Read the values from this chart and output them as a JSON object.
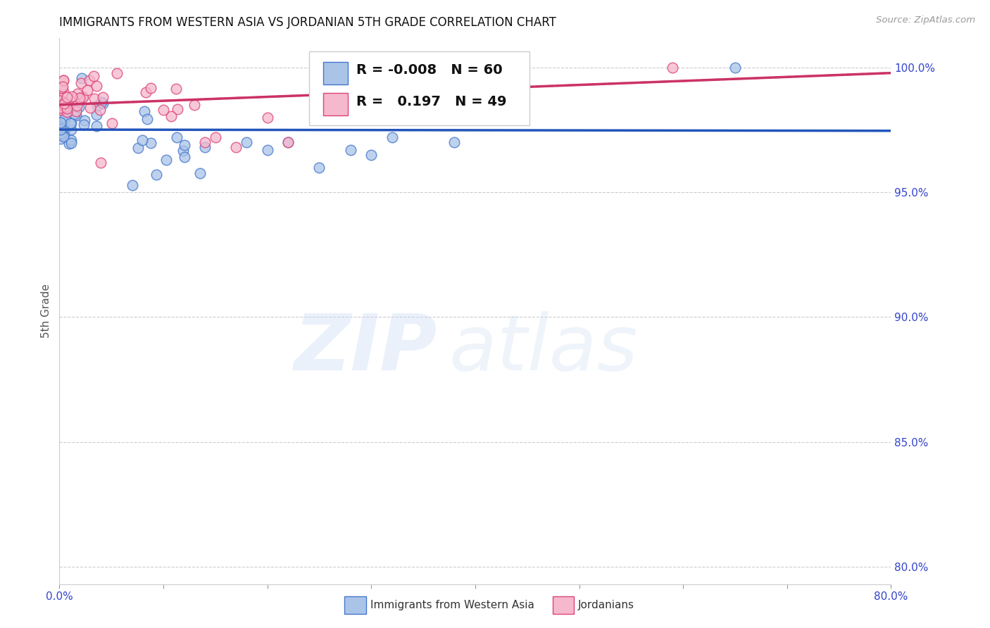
{
  "title": "IMMIGRANTS FROM WESTERN ASIA VS JORDANIAN 5TH GRADE CORRELATION CHART",
  "source": "Source: ZipAtlas.com",
  "ylabel": "5th Grade",
  "legend_blue_R": "-0.008",
  "legend_blue_N": "60",
  "legend_pink_R": "0.197",
  "legend_pink_N": "49",
  "legend_blue_label": "Immigrants from Western Asia",
  "legend_pink_label": "Jordanians",
  "xlim": [
    0.0,
    0.8
  ],
  "ylim": [
    0.793,
    1.012
  ],
  "yticks": [
    0.8,
    0.85,
    0.9,
    0.95,
    1.0
  ],
  "ytick_labels": [
    "80.0%",
    "85.0%",
    "90.0%",
    "95.0%",
    "100.0%"
  ],
  "xtick_positions": [
    0.0,
    0.1,
    0.2,
    0.3,
    0.4,
    0.5,
    0.6,
    0.7,
    0.8
  ],
  "xtick_labels": [
    "0.0%",
    "",
    "",
    "",
    "",
    "",
    "",
    "",
    "80.0%"
  ],
  "blue_scatter_color": "#aac4e8",
  "blue_edge_color": "#4477cc",
  "pink_scatter_color": "#f5b8cc",
  "pink_edge_color": "#dd4477",
  "blue_line_color": "#2255bb",
  "pink_line_color": "#cc3366",
  "grid_color": "#cccccc",
  "title_fontsize": 12,
  "background_color": "#ffffff",
  "tick_color": "#3344cc",
  "source_color": "#999999",
  "axis_label_color": "#555555",
  "legend_border_color": "#cccccc"
}
